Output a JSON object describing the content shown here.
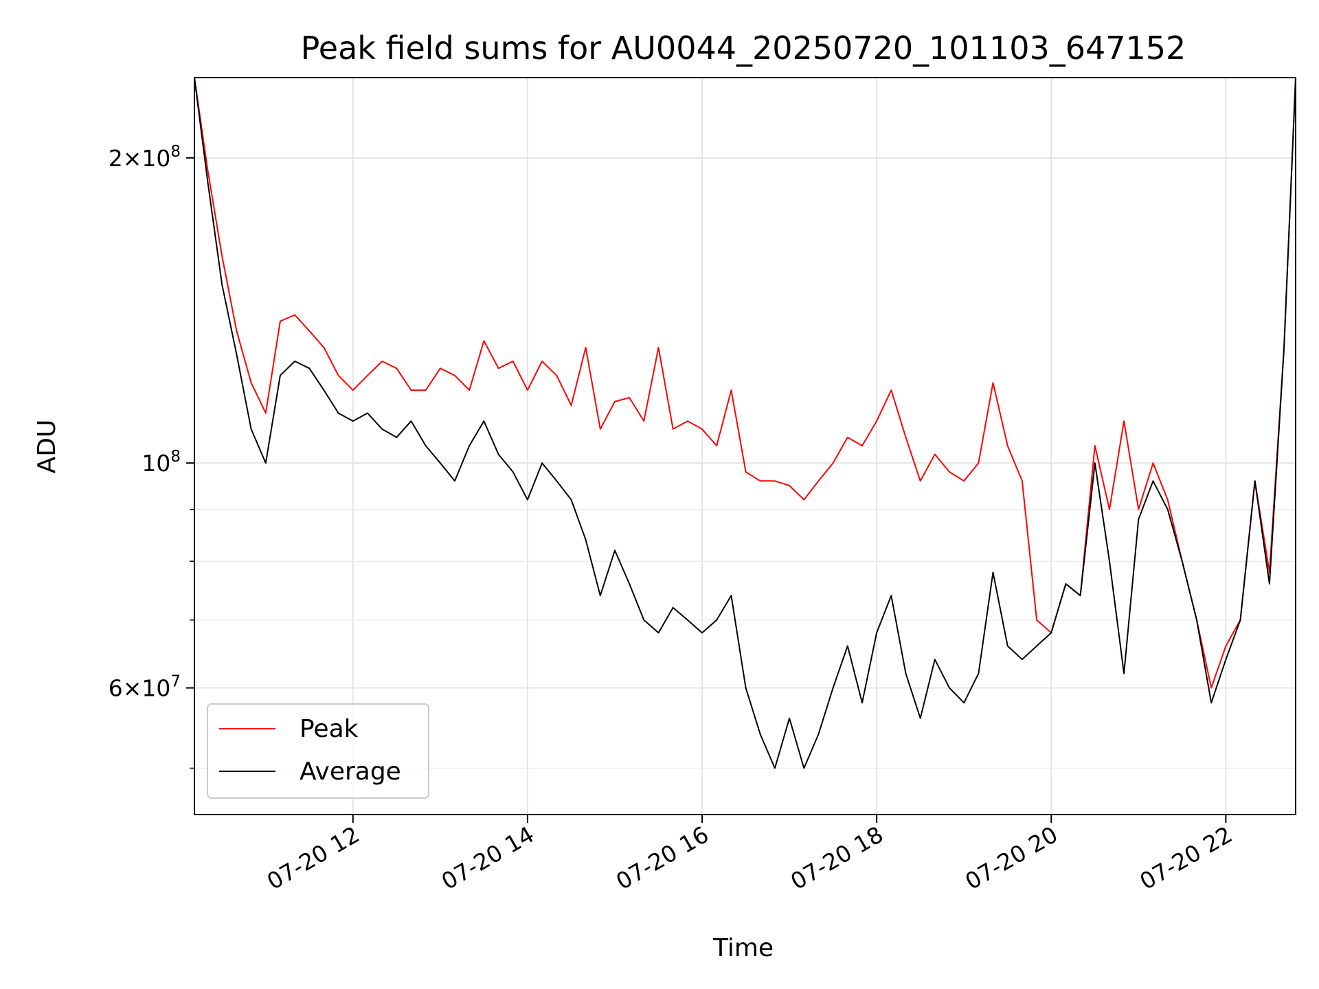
{
  "chart_data": {
    "type": "line",
    "title": "Peak field sums for AU0044_20250720_101103_647152",
    "xlabel": "Time",
    "ylabel": "ADU",
    "y_scale": "log",
    "ylim": [
      45000000,
      240000000
    ],
    "xlim": [
      "2025-07-20 10:11",
      "2025-07-20 22:48"
    ],
    "grid": true,
    "legend_position": "lower-left",
    "x_ticks": [
      {
        "time": "2025-07-20 12:00",
        "label": "07-20 12"
      },
      {
        "time": "2025-07-20 14:00",
        "label": "07-20 14"
      },
      {
        "time": "2025-07-20 16:00",
        "label": "07-20 16"
      },
      {
        "time": "2025-07-20 18:00",
        "label": "07-20 18"
      },
      {
        "time": "2025-07-20 20:00",
        "label": "07-20 20"
      },
      {
        "time": "2025-07-20 22:00",
        "label": "07-20 22"
      }
    ],
    "y_major_ticks": [
      {
        "value": 200000000,
        "mantissa": "2",
        "exponent": "8"
      },
      {
        "value": 100000000,
        "mantissa": "",
        "exponent": "8"
      },
      {
        "value": 60000000,
        "mantissa": "6",
        "exponent": "7"
      }
    ],
    "y_minor_ticks": [
      50000000,
      70000000,
      80000000,
      90000000
    ],
    "series": [
      {
        "name": "Peak",
        "color": "#ff0000",
        "x": [
          "2025-07-20 10:11",
          "2025-07-20 10:20",
          "2025-07-20 10:30",
          "2025-07-20 10:40",
          "2025-07-20 10:50",
          "2025-07-20 11:00",
          "2025-07-20 11:10",
          "2025-07-20 11:20",
          "2025-07-20 11:30",
          "2025-07-20 11:40",
          "2025-07-20 11:50",
          "2025-07-20 12:00",
          "2025-07-20 12:10",
          "2025-07-20 12:20",
          "2025-07-20 12:30",
          "2025-07-20 12:40",
          "2025-07-20 12:50",
          "2025-07-20 13:00",
          "2025-07-20 13:10",
          "2025-07-20 13:20",
          "2025-07-20 13:30",
          "2025-07-20 13:40",
          "2025-07-20 13:50",
          "2025-07-20 14:00",
          "2025-07-20 14:10",
          "2025-07-20 14:20",
          "2025-07-20 14:30",
          "2025-07-20 14:40",
          "2025-07-20 14:50",
          "2025-07-20 15:00",
          "2025-07-20 15:10",
          "2025-07-20 15:20",
          "2025-07-20 15:30",
          "2025-07-20 15:40",
          "2025-07-20 15:50",
          "2025-07-20 16:00",
          "2025-07-20 16:10",
          "2025-07-20 16:20",
          "2025-07-20 16:30",
          "2025-07-20 16:40",
          "2025-07-20 16:50",
          "2025-07-20 17:00",
          "2025-07-20 17:10",
          "2025-07-20 17:20",
          "2025-07-20 17:30",
          "2025-07-20 17:40",
          "2025-07-20 17:50",
          "2025-07-20 18:00",
          "2025-07-20 18:10",
          "2025-07-20 18:20",
          "2025-07-20 18:30",
          "2025-07-20 18:40",
          "2025-07-20 18:50",
          "2025-07-20 19:00",
          "2025-07-20 19:10",
          "2025-07-20 19:20",
          "2025-07-20 19:30",
          "2025-07-20 19:40",
          "2025-07-20 19:50",
          "2025-07-20 20:00",
          "2025-07-20 20:10",
          "2025-07-20 20:20",
          "2025-07-20 20:30",
          "2025-07-20 20:40",
          "2025-07-20 20:50",
          "2025-07-20 21:00",
          "2025-07-20 21:10",
          "2025-07-20 21:20",
          "2025-07-20 21:30",
          "2025-07-20 21:40",
          "2025-07-20 21:50",
          "2025-07-20 22:00",
          "2025-07-20 22:10",
          "2025-07-20 22:20",
          "2025-07-20 22:30",
          "2025-07-20 22:40",
          "2025-07-20 22:48"
        ],
        "values": [
          240000000,
          195000000,
          160000000,
          135000000,
          120000000,
          112000000,
          138000000,
          140000000,
          135000000,
          130000000,
          122000000,
          118000000,
          122000000,
          126000000,
          124000000,
          118000000,
          118000000,
          124000000,
          122000000,
          118000000,
          132000000,
          124000000,
          126000000,
          118000000,
          126000000,
          122000000,
          114000000,
          130000000,
          108000000,
          115000000,
          116000000,
          110000000,
          130000000,
          108000000,
          110000000,
          108000000,
          104000000,
          118000000,
          98000000,
          96000000,
          96000000,
          95000000,
          92000000,
          96000000,
          100000000,
          106000000,
          104000000,
          110000000,
          118000000,
          106000000,
          96000000,
          102000000,
          98000000,
          96000000,
          100000000,
          120000000,
          104000000,
          96000000,
          70000000,
          68000000,
          76000000,
          74000000,
          104000000,
          90000000,
          110000000,
          90000000,
          100000000,
          92000000,
          80000000,
          70000000,
          60000000,
          66000000,
          70000000,
          96000000,
          78000000,
          130000000,
          240000000
        ]
      },
      {
        "name": "Average",
        "color": "#000000",
        "x": [
          "2025-07-20 10:11",
          "2025-07-20 10:20",
          "2025-07-20 10:30",
          "2025-07-20 10:40",
          "2025-07-20 10:50",
          "2025-07-20 11:00",
          "2025-07-20 11:10",
          "2025-07-20 11:20",
          "2025-07-20 11:30",
          "2025-07-20 11:40",
          "2025-07-20 11:50",
          "2025-07-20 12:00",
          "2025-07-20 12:10",
          "2025-07-20 12:20",
          "2025-07-20 12:30",
          "2025-07-20 12:40",
          "2025-07-20 12:50",
          "2025-07-20 13:00",
          "2025-07-20 13:10",
          "2025-07-20 13:20",
          "2025-07-20 13:30",
          "2025-07-20 13:40",
          "2025-07-20 13:50",
          "2025-07-20 14:00",
          "2025-07-20 14:10",
          "2025-07-20 14:20",
          "2025-07-20 14:30",
          "2025-07-20 14:40",
          "2025-07-20 14:50",
          "2025-07-20 15:00",
          "2025-07-20 15:10",
          "2025-07-20 15:20",
          "2025-07-20 15:30",
          "2025-07-20 15:40",
          "2025-07-20 15:50",
          "2025-07-20 16:00",
          "2025-07-20 16:10",
          "2025-07-20 16:20",
          "2025-07-20 16:30",
          "2025-07-20 16:40",
          "2025-07-20 16:50",
          "2025-07-20 17:00",
          "2025-07-20 17:10",
          "2025-07-20 17:20",
          "2025-07-20 17:30",
          "2025-07-20 17:40",
          "2025-07-20 17:50",
          "2025-07-20 18:00",
          "2025-07-20 18:10",
          "2025-07-20 18:20",
          "2025-07-20 18:30",
          "2025-07-20 18:40",
          "2025-07-20 18:50",
          "2025-07-20 19:00",
          "2025-07-20 19:10",
          "2025-07-20 19:20",
          "2025-07-20 19:30",
          "2025-07-20 19:40",
          "2025-07-20 19:50",
          "2025-07-20 20:00",
          "2025-07-20 20:10",
          "2025-07-20 20:20",
          "2025-07-20 20:30",
          "2025-07-20 20:40",
          "2025-07-20 20:50",
          "2025-07-20 21:00",
          "2025-07-20 21:10",
          "2025-07-20 21:20",
          "2025-07-20 21:30",
          "2025-07-20 21:40",
          "2025-07-20 21:50",
          "2025-07-20 22:00",
          "2025-07-20 22:10",
          "2025-07-20 22:20",
          "2025-07-20 22:30",
          "2025-07-20 22:40",
          "2025-07-20 22:48"
        ],
        "values": [
          240000000,
          190000000,
          150000000,
          128000000,
          108000000,
          100000000,
          122000000,
          126000000,
          124000000,
          118000000,
          112000000,
          110000000,
          112000000,
          108000000,
          106000000,
          110000000,
          104000000,
          100000000,
          96000000,
          104000000,
          110000000,
          102000000,
          98000000,
          92000000,
          100000000,
          96000000,
          92000000,
          84000000,
          74000000,
          82000000,
          76000000,
          70000000,
          68000000,
          72000000,
          70000000,
          68000000,
          70000000,
          74000000,
          60000000,
          54000000,
          50000000,
          56000000,
          50000000,
          54000000,
          60000000,
          66000000,
          58000000,
          68000000,
          74000000,
          62000000,
          56000000,
          64000000,
          60000000,
          58000000,
          62000000,
          78000000,
          66000000,
          64000000,
          66000000,
          68000000,
          76000000,
          74000000,
          100000000,
          80000000,
          62000000,
          88000000,
          96000000,
          90000000,
          80000000,
          70000000,
          58000000,
          64000000,
          70000000,
          96000000,
          76000000,
          130000000,
          240000000
        ]
      }
    ]
  }
}
